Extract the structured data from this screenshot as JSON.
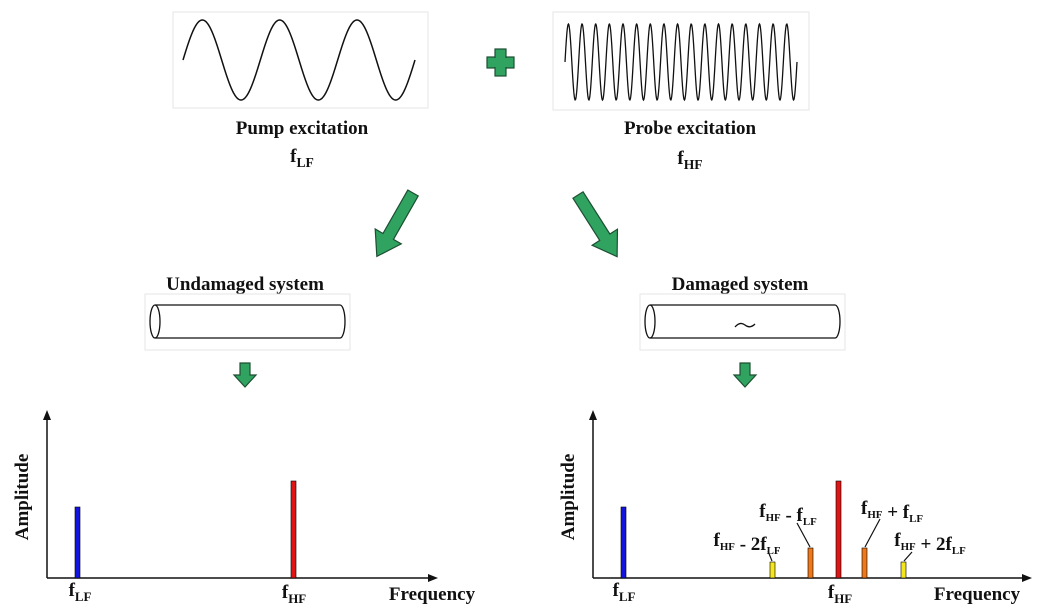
{
  "pump": {
    "title": "Pump excitation",
    "frequency": {
      "text": "f",
      "sub": "LF"
    }
  },
  "probe": {
    "title": "Probe excitation",
    "frequency": {
      "text": "f",
      "sub": "HF"
    }
  },
  "undamaged": {
    "title": "Undamaged system"
  },
  "damaged": {
    "title": "Damaged system"
  },
  "left_spectrum": {
    "y_label": "Amplitude",
    "x_label": "Frequency",
    "peaks": [
      {
        "text": "f",
        "sub": "LF"
      },
      {
        "text": "f",
        "sub": "HF"
      }
    ]
  },
  "right_spectrum": {
    "y_label": "Amplitude",
    "x_label": "Frequency",
    "peaks": [
      {
        "text": "f",
        "sub": "LF"
      },
      {
        "text": "f",
        "sub": "HF"
      }
    ],
    "sidebands": [
      [
        {
          "text": "f",
          "sub": "HF"
        },
        {
          "text": " - 2f",
          "sub": "LF"
        }
      ],
      [
        {
          "text": "f",
          "sub": "HF"
        },
        {
          "text": " - f",
          "sub": "LF"
        }
      ],
      [
        {
          "text": "f",
          "sub": "HF"
        },
        {
          "text": " + f",
          "sub": "LF"
        }
      ],
      [
        {
          "text": "f",
          "sub": "HF"
        },
        {
          "text": " + 2f",
          "sub": "LF"
        }
      ]
    ]
  }
}
